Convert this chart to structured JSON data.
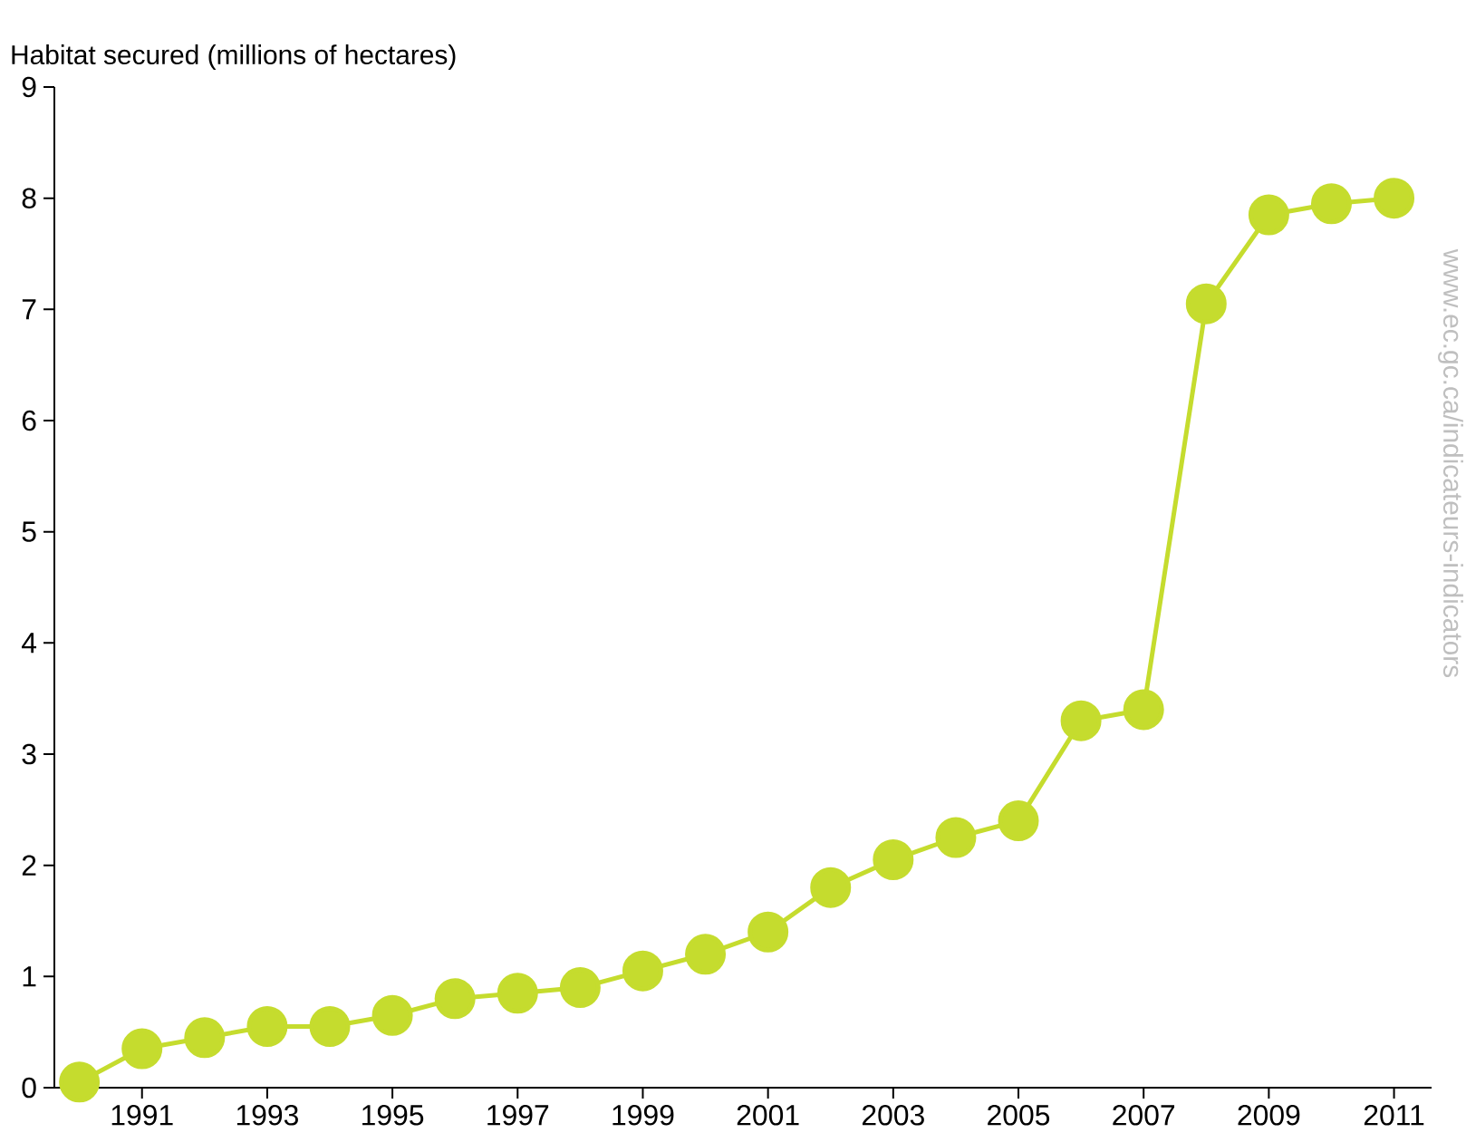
{
  "chart_data": {
    "type": "line",
    "ylabel": "Habitat secured (millions of hectares)",
    "x": [
      1990,
      1991,
      1992,
      1993,
      1994,
      1995,
      1996,
      1997,
      1998,
      1999,
      2000,
      2001,
      2002,
      2003,
      2004,
      2005,
      2006,
      2007,
      2008,
      2009,
      2010,
      2011
    ],
    "values": [
      0.05,
      0.35,
      0.45,
      0.55,
      0.55,
      0.65,
      0.8,
      0.85,
      0.9,
      1.05,
      1.2,
      1.4,
      1.8,
      2.05,
      2.25,
      2.4,
      3.3,
      3.4,
      7.05,
      7.85,
      7.95,
      8.0
    ],
    "color": "#c5dc2e",
    "marker": "circle",
    "line_style": "solid",
    "xlim": [
      1989.6,
      2011.6
    ],
    "ylim": [
      0,
      9
    ],
    "xticks": [
      1991,
      1993,
      1995,
      1997,
      1999,
      2001,
      2003,
      2005,
      2007,
      2009,
      2011
    ],
    "yticks": [
      0,
      1,
      2,
      3,
      4,
      5,
      6,
      7,
      8,
      9
    ],
    "annotations": [
      "www.ec.gc.ca/indicateurs-indicators"
    ]
  }
}
